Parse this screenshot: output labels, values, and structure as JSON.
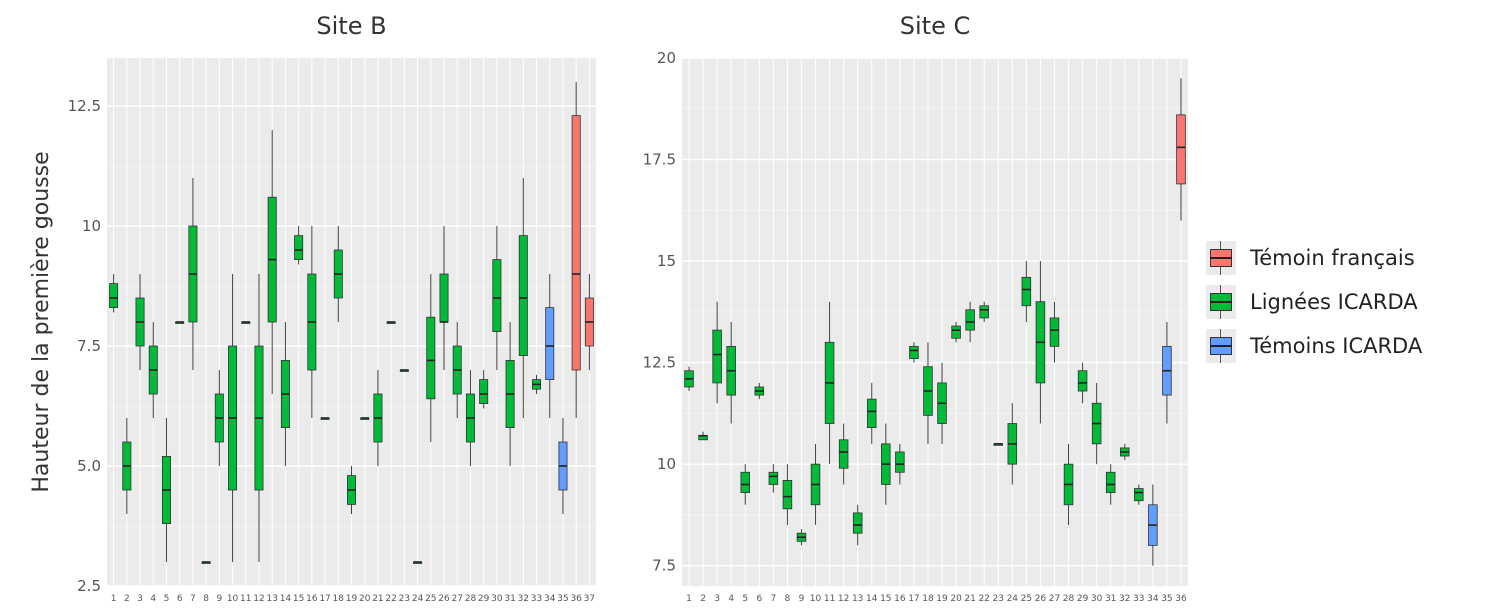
{
  "chart_data": [
    {
      "type": "boxplot",
      "title": "Site B",
      "ylabel": "Hauteur de la première gousse",
      "xlabel": "",
      "ylim": [
        2.5,
        13.5
      ],
      "yticks": [
        "2.5",
        "5.0",
        "7.5",
        "10",
        "12.5"
      ],
      "ytick_values": [
        2.5,
        5.0,
        7.5,
        10,
        12.5
      ],
      "grid": true,
      "categories": [
        "1",
        "2",
        "3",
        "4",
        "5",
        "6",
        "7",
        "8",
        "9",
        "10",
        "11",
        "12",
        "13",
        "14",
        "15",
        "16",
        "17",
        "18",
        "19",
        "20",
        "21",
        "22",
        "23",
        "24",
        "25",
        "26",
        "27",
        "28",
        "29",
        "30",
        "31",
        "32",
        "33",
        "34",
        "35",
        "36",
        "37"
      ],
      "boxes": [
        {
          "x": "1",
          "group": "Lignées ICARDA",
          "min": 8.2,
          "q1": 8.3,
          "median": 8.5,
          "q3": 8.8,
          "max": 9.0
        },
        {
          "x": "2",
          "group": "Lignées ICARDA",
          "min": 4.0,
          "q1": 4.5,
          "median": 5.0,
          "q3": 5.5,
          "max": 6.0
        },
        {
          "x": "3",
          "group": "Lignées ICARDA",
          "min": 7.0,
          "q1": 7.5,
          "median": 8.0,
          "q3": 8.5,
          "max": 9.0
        },
        {
          "x": "4",
          "group": "Lignées ICARDA",
          "min": 6.0,
          "q1": 6.5,
          "median": 7.0,
          "q3": 7.5,
          "max": 8.0
        },
        {
          "x": "5",
          "group": "Lignées ICARDA",
          "min": 3.0,
          "q1": 3.8,
          "median": 4.5,
          "q3": 5.2,
          "max": 6.0
        },
        {
          "x": "6",
          "group": "Lignées ICARDA",
          "min": 8.0,
          "q1": 8.0,
          "median": 8.0,
          "q3": 8.0,
          "max": 8.0
        },
        {
          "x": "7",
          "group": "Lignées ICARDA",
          "min": 7.0,
          "q1": 8.0,
          "median": 9.0,
          "q3": 10.0,
          "max": 11.0
        },
        {
          "x": "8",
          "group": "Lignées ICARDA",
          "min": 3.0,
          "q1": 3.0,
          "median": 3.0,
          "q3": 3.0,
          "max": 3.0
        },
        {
          "x": "9",
          "group": "Lignées ICARDA",
          "min": 5.0,
          "q1": 5.5,
          "median": 6.0,
          "q3": 6.5,
          "max": 7.0
        },
        {
          "x": "10",
          "group": "Lignées ICARDA",
          "min": 3.0,
          "q1": 4.5,
          "median": 6.0,
          "q3": 7.5,
          "max": 9.0
        },
        {
          "x": "11",
          "group": "Lignées ICARDA",
          "min": 8.0,
          "q1": 8.0,
          "median": 8.0,
          "q3": 8.0,
          "max": 8.0
        },
        {
          "x": "12",
          "group": "Lignées ICARDA",
          "min": 3.0,
          "q1": 4.5,
          "median": 6.0,
          "q3": 7.5,
          "max": 9.0
        },
        {
          "x": "13",
          "group": "Lignées ICARDA",
          "min": 6.5,
          "q1": 8.0,
          "median": 9.3,
          "q3": 10.6,
          "max": 12.0
        },
        {
          "x": "14",
          "group": "Lignées ICARDA",
          "min": 5.0,
          "q1": 5.8,
          "median": 6.5,
          "q3": 7.2,
          "max": 8.0
        },
        {
          "x": "15",
          "group": "Lignées ICARDA",
          "min": 9.2,
          "q1": 9.3,
          "median": 9.5,
          "q3": 9.8,
          "max": 10.0
        },
        {
          "x": "16",
          "group": "Lignées ICARDA",
          "min": 6.0,
          "q1": 7.0,
          "median": 8.0,
          "q3": 9.0,
          "max": 10.0
        },
        {
          "x": "17",
          "group": "Lignées ICARDA",
          "min": 6.0,
          "q1": 6.0,
          "median": 6.0,
          "q3": 6.0,
          "max": 6.0
        },
        {
          "x": "18",
          "group": "Lignées ICARDA",
          "min": 8.0,
          "q1": 8.5,
          "median": 9.0,
          "q3": 9.5,
          "max": 10.0
        },
        {
          "x": "19",
          "group": "Lignées ICARDA",
          "min": 4.0,
          "q1": 4.2,
          "median": 4.5,
          "q3": 4.8,
          "max": 5.0
        },
        {
          "x": "20",
          "group": "Lignées ICARDA",
          "min": 6.0,
          "q1": 6.0,
          "median": 6.0,
          "q3": 6.0,
          "max": 6.0
        },
        {
          "x": "21",
          "group": "Lignées ICARDA",
          "min": 5.0,
          "q1": 5.5,
          "median": 6.0,
          "q3": 6.5,
          "max": 7.0
        },
        {
          "x": "22",
          "group": "Lignées ICARDA",
          "min": 8.0,
          "q1": 8.0,
          "median": 8.0,
          "q3": 8.0,
          "max": 8.0
        },
        {
          "x": "23",
          "group": "Lignées ICARDA",
          "min": 7.0,
          "q1": 7.0,
          "median": 7.0,
          "q3": 7.0,
          "max": 7.0
        },
        {
          "x": "24",
          "group": "Lignées ICARDA",
          "min": 3.0,
          "q1": 3.0,
          "median": 3.0,
          "q3": 3.0,
          "max": 3.0
        },
        {
          "x": "25",
          "group": "Lignées ICARDA",
          "min": 5.5,
          "q1": 6.4,
          "median": 7.2,
          "q3": 8.1,
          "max": 9.0
        },
        {
          "x": "26",
          "group": "Lignées ICARDA",
          "min": 7.0,
          "q1": 8.0,
          "median": 8.0,
          "q3": 9.0,
          "max": 10.0
        },
        {
          "x": "27",
          "group": "Lignées ICARDA",
          "min": 6.0,
          "q1": 6.5,
          "median": 7.0,
          "q3": 7.5,
          "max": 8.0
        },
        {
          "x": "28",
          "group": "Lignées ICARDA",
          "min": 5.0,
          "q1": 5.5,
          "median": 6.0,
          "q3": 6.5,
          "max": 7.0
        },
        {
          "x": "29",
          "group": "Lignées ICARDA",
          "min": 6.2,
          "q1": 6.3,
          "median": 6.5,
          "q3": 6.8,
          "max": 7.0
        },
        {
          "x": "30",
          "group": "Lignées ICARDA",
          "min": 7.0,
          "q1": 7.8,
          "median": 8.5,
          "q3": 9.3,
          "max": 10.0
        },
        {
          "x": "31",
          "group": "Lignées ICARDA",
          "min": 5.0,
          "q1": 5.8,
          "median": 6.5,
          "q3": 7.2,
          "max": 8.0
        },
        {
          "x": "32",
          "group": "Lignées ICARDA",
          "min": 6.0,
          "q1": 7.3,
          "median": 8.5,
          "q3": 9.8,
          "max": 11.0
        },
        {
          "x": "33",
          "group": "Lignées ICARDA",
          "min": 6.5,
          "q1": 6.6,
          "median": 6.7,
          "q3": 6.8,
          "max": 6.9
        },
        {
          "x": "34",
          "group": "Témoins ICARDA",
          "min": 6.0,
          "q1": 6.8,
          "median": 7.5,
          "q3": 8.3,
          "max": 9.0
        },
        {
          "x": "35",
          "group": "Témoins ICARDA",
          "min": 4.0,
          "q1": 4.5,
          "median": 5.0,
          "q3": 5.5,
          "max": 6.0
        },
        {
          "x": "36",
          "group": "Témoin français",
          "min": 6.0,
          "q1": 7.0,
          "median": 9.0,
          "q3": 12.3,
          "max": 13.0
        },
        {
          "x": "37",
          "group": "Témoin français",
          "min": 7.0,
          "q1": 7.5,
          "median": 8.0,
          "q3": 8.5,
          "max": 9.0
        }
      ]
    },
    {
      "type": "boxplot",
      "title": "Site C",
      "ylabel": "",
      "xlabel": "",
      "ylim": [
        7.0,
        20.0
      ],
      "yticks": [
        "7.5",
        "10",
        "12.5",
        "15",
        "17.5",
        "20"
      ],
      "ytick_values": [
        7.5,
        10,
        12.5,
        15,
        17.5,
        20
      ],
      "grid": true,
      "categories": [
        "1",
        "2",
        "3",
        "4",
        "5",
        "6",
        "7",
        "8",
        "9",
        "10",
        "11",
        "12",
        "13",
        "14",
        "15",
        "16",
        "17",
        "18",
        "19",
        "20",
        "21",
        "22",
        "23",
        "24",
        "25",
        "26",
        "27",
        "28",
        "29",
        "30",
        "31",
        "32",
        "33",
        "34",
        "35",
        "36"
      ],
      "boxes": [
        {
          "x": "1",
          "group": "Lignées ICARDA",
          "min": 11.8,
          "q1": 11.9,
          "median": 12.1,
          "q3": 12.3,
          "max": 12.4
        },
        {
          "x": "2",
          "group": "Lignées ICARDA",
          "min": 10.6,
          "q1": 10.6,
          "median": 10.7,
          "q3": 10.7,
          "max": 10.8
        },
        {
          "x": "3",
          "group": "Lignées ICARDA",
          "min": 11.5,
          "q1": 12.0,
          "median": 12.7,
          "q3": 13.3,
          "max": 14.0
        },
        {
          "x": "4",
          "group": "Lignées ICARDA",
          "min": 11.0,
          "q1": 11.7,
          "median": 12.3,
          "q3": 12.9,
          "max": 13.5
        },
        {
          "x": "5",
          "group": "Lignées ICARDA",
          "min": 9.0,
          "q1": 9.3,
          "median": 9.5,
          "q3": 9.8,
          "max": 10.0
        },
        {
          "x": "6",
          "group": "Lignées ICARDA",
          "min": 11.6,
          "q1": 11.7,
          "median": 11.8,
          "q3": 11.9,
          "max": 12.0
        },
        {
          "x": "7",
          "group": "Lignées ICARDA",
          "min": 9.3,
          "q1": 9.5,
          "median": 9.7,
          "q3": 9.8,
          "max": 10.0
        },
        {
          "x": "8",
          "group": "Lignées ICARDA",
          "min": 8.5,
          "q1": 8.9,
          "median": 9.2,
          "q3": 9.6,
          "max": 10.0
        },
        {
          "x": "9",
          "group": "Lignées ICARDA",
          "min": 8.0,
          "q1": 8.1,
          "median": 8.2,
          "q3": 8.3,
          "max": 8.4
        },
        {
          "x": "10",
          "group": "Lignées ICARDA",
          "min": 8.5,
          "q1": 9.0,
          "median": 9.5,
          "q3": 10.0,
          "max": 10.5
        },
        {
          "x": "11",
          "group": "Lignées ICARDA",
          "min": 10.0,
          "q1": 11.0,
          "median": 12.0,
          "q3": 13.0,
          "max": 14.0
        },
        {
          "x": "12",
          "group": "Lignées ICARDA",
          "min": 9.5,
          "q1": 9.9,
          "median": 10.3,
          "q3": 10.6,
          "max": 11.0
        },
        {
          "x": "13",
          "group": "Lignées ICARDA",
          "min": 8.0,
          "q1": 8.3,
          "median": 8.5,
          "q3": 8.8,
          "max": 9.0
        },
        {
          "x": "14",
          "group": "Lignées ICARDA",
          "min": 10.5,
          "q1": 10.9,
          "median": 11.3,
          "q3": 11.6,
          "max": 12.0
        },
        {
          "x": "15",
          "group": "Lignées ICARDA",
          "min": 9.0,
          "q1": 9.5,
          "median": 10.0,
          "q3": 10.5,
          "max": 11.0
        },
        {
          "x": "16",
          "group": "Lignées ICARDA",
          "min": 9.5,
          "q1": 9.8,
          "median": 10.0,
          "q3": 10.3,
          "max": 10.5
        },
        {
          "x": "17",
          "group": "Lignées ICARDA",
          "min": 12.5,
          "q1": 12.6,
          "median": 12.8,
          "q3": 12.9,
          "max": 13.0
        },
        {
          "x": "18",
          "group": "Lignées ICARDA",
          "min": 10.5,
          "q1": 11.2,
          "median": 11.8,
          "q3": 12.4,
          "max": 13.0
        },
        {
          "x": "19",
          "group": "Lignées ICARDA",
          "min": 10.5,
          "q1": 11.0,
          "median": 11.5,
          "q3": 12.0,
          "max": 12.5
        },
        {
          "x": "20",
          "group": "Lignées ICARDA",
          "min": 13.0,
          "q1": 13.1,
          "median": 13.3,
          "q3": 13.4,
          "max": 13.5
        },
        {
          "x": "21",
          "group": "Lignées ICARDA",
          "min": 13.0,
          "q1": 13.3,
          "median": 13.5,
          "q3": 13.8,
          "max": 14.0
        },
        {
          "x": "22",
          "group": "Lignées ICARDA",
          "min": 13.5,
          "q1": 13.6,
          "median": 13.8,
          "q3": 13.9,
          "max": 14.0
        },
        {
          "x": "23",
          "group": "Lignées ICARDA",
          "min": 10.5,
          "q1": 10.5,
          "median": 10.5,
          "q3": 10.5,
          "max": 10.5
        },
        {
          "x": "24",
          "group": "Lignées ICARDA",
          "min": 9.5,
          "q1": 10.0,
          "median": 10.5,
          "q3": 11.0,
          "max": 11.5
        },
        {
          "x": "25",
          "group": "Lignées ICARDA",
          "min": 13.5,
          "q1": 13.9,
          "median": 14.3,
          "q3": 14.6,
          "max": 15.0
        },
        {
          "x": "26",
          "group": "Lignées ICARDA",
          "min": 11.0,
          "q1": 12.0,
          "median": 13.0,
          "q3": 14.0,
          "max": 15.0
        },
        {
          "x": "27",
          "group": "Lignées ICARDA",
          "min": 12.5,
          "q1": 12.9,
          "median": 13.3,
          "q3": 13.6,
          "max": 14.0
        },
        {
          "x": "28",
          "group": "Lignées ICARDA",
          "min": 8.5,
          "q1": 9.0,
          "median": 9.5,
          "q3": 10.0,
          "max": 10.5
        },
        {
          "x": "29",
          "group": "Lignées ICARDA",
          "min": 11.5,
          "q1": 11.8,
          "median": 12.0,
          "q3": 12.3,
          "max": 12.5
        },
        {
          "x": "30",
          "group": "Lignées ICARDA",
          "min": 10.0,
          "q1": 10.5,
          "median": 11.0,
          "q3": 11.5,
          "max": 12.0
        },
        {
          "x": "31",
          "group": "Lignées ICARDA",
          "min": 9.0,
          "q1": 9.3,
          "median": 9.5,
          "q3": 9.8,
          "max": 10.0
        },
        {
          "x": "32",
          "group": "Lignées ICARDA",
          "min": 10.1,
          "q1": 10.2,
          "median": 10.3,
          "q3": 10.4,
          "max": 10.5
        },
        {
          "x": "33",
          "group": "Lignées ICARDA",
          "min": 9.0,
          "q1": 9.1,
          "median": 9.3,
          "q3": 9.4,
          "max": 9.5
        },
        {
          "x": "34",
          "group": "Témoins ICARDA",
          "min": 7.5,
          "q1": 8.0,
          "median": 8.5,
          "q3": 9.0,
          "max": 9.5
        },
        {
          "x": "35",
          "group": "Témoins ICARDA",
          "min": 11.0,
          "q1": 11.7,
          "median": 12.3,
          "q3": 12.9,
          "max": 13.5
        },
        {
          "x": "36",
          "group": "Témoin français",
          "min": 16.0,
          "q1": 16.9,
          "median": 17.8,
          "q3": 18.6,
          "max": 19.5
        }
      ]
    }
  ],
  "legend": {
    "placement": "right",
    "items": [
      {
        "label": "Témoin français",
        "color": "#f8766d"
      },
      {
        "label": "Lignées ICARDA",
        "color": "#00ba38"
      },
      {
        "label": "Témoins ICARDA",
        "color": "#619cff"
      }
    ]
  }
}
